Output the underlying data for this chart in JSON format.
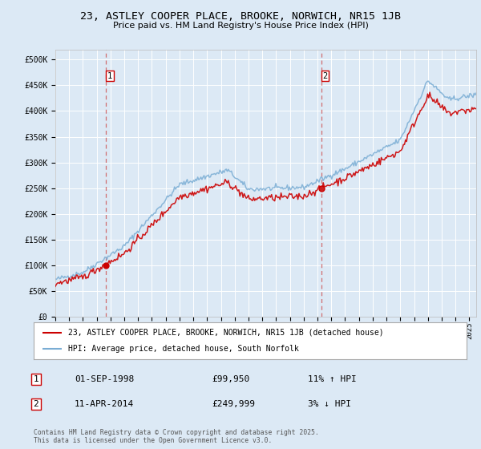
{
  "title": "23, ASTLEY COOPER PLACE, BROOKE, NORWICH, NR15 1JB",
  "subtitle": "Price paid vs. HM Land Registry's House Price Index (HPI)",
  "bg_color": "#dce9f5",
  "legend_line1": "23, ASTLEY COOPER PLACE, BROOKE, NORWICH, NR15 1JB (detached house)",
  "legend_line2": "HPI: Average price, detached house, South Norfolk",
  "annotation1_date_str": "01-SEP-1998",
  "annotation1_price_str": "£99,950",
  "annotation1_hpi_str": "11% ↑ HPI",
  "annotation1_year": 1998.67,
  "annotation1_price": 99950,
  "annotation2_date_str": "11-APR-2014",
  "annotation2_price_str": "£249,999",
  "annotation2_hpi_str": "3% ↓ HPI",
  "annotation2_year": 2014.28,
  "annotation2_price": 249999,
  "footer": "Contains HM Land Registry data © Crown copyright and database right 2025.\nThis data is licensed under the Open Government Licence v3.0.",
  "xmin": 1995,
  "xmax": 2025.5,
  "ymin": 0,
  "ymax": 520000,
  "yticks": [
    0,
    50000,
    100000,
    150000,
    200000,
    250000,
    300000,
    350000,
    400000,
    450000,
    500000
  ],
  "ytick_labels": [
    "£0",
    "£50K",
    "£100K",
    "£150K",
    "£200K",
    "£250K",
    "£300K",
    "£350K",
    "£400K",
    "£450K",
    "£500K"
  ],
  "red_color": "#cc0000",
  "blue_color": "#7aadd4"
}
